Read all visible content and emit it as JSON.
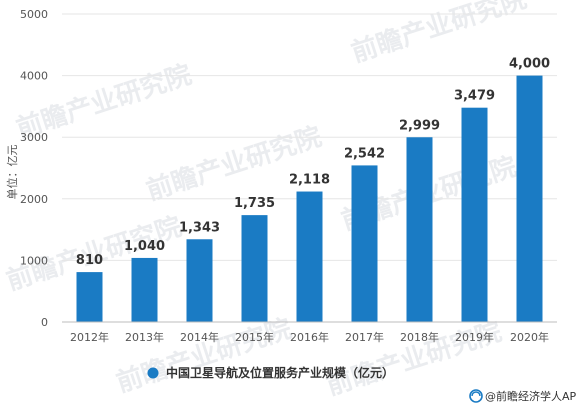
{
  "chart_data": {
    "type": "bar",
    "categories": [
      "2012年",
      "2013年",
      "2014年",
      "2015年",
      "2016年",
      "2017年",
      "2018年",
      "2019年",
      "2020年"
    ],
    "values": [
      810,
      1040,
      1343,
      1735,
      2118,
      2542,
      2999,
      3479,
      4000
    ],
    "value_labels": [
      "810",
      "1,040",
      "1,343",
      "1,735",
      "2,118",
      "2,542",
      "2,999",
      "3,479",
      "4,000"
    ],
    "ylim": [
      0,
      5000
    ],
    "yticks": [
      0,
      1000,
      2000,
      3000,
      4000,
      5000
    ],
    "ytick_labels": [
      "0",
      "1000",
      "2000",
      "3000",
      "4000",
      "5000"
    ],
    "ylabel": "单位：亿元",
    "xlabel": "",
    "title": "",
    "grid": true,
    "legend": {
      "placement": "bottom",
      "entries": [
        {
          "name": "中国卫星导航及位置服务产业规模（亿元）",
          "color": "#1a7bc4"
        }
      ]
    },
    "bar_color": "#1a7bc4"
  },
  "credit": "@前瞻经济学人APP",
  "watermark": "前瞻产业研究院",
  "colors": {
    "bar": "#1a7bc4",
    "grid": "#e6e6e6",
    "axis": "#bdbdbd"
  }
}
